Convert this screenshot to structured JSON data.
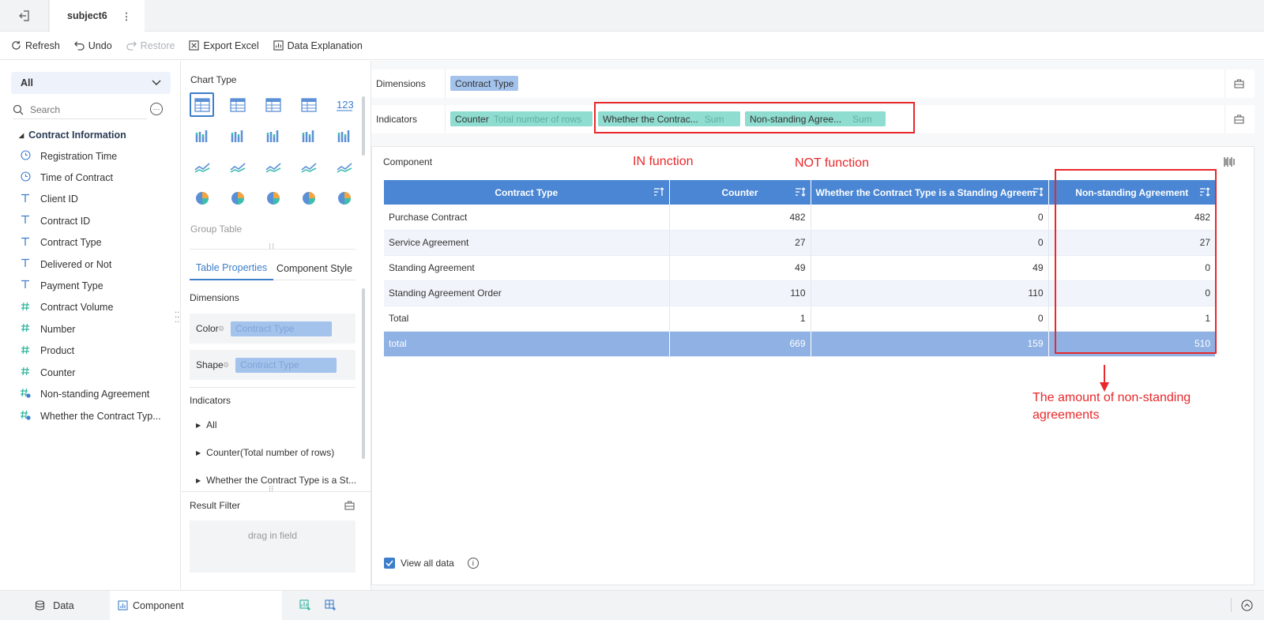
{
  "topbar": {
    "tab_title": "subject6"
  },
  "toolbar": {
    "refresh": "Refresh",
    "undo": "Undo",
    "restore": "Restore",
    "export_excel": "Export Excel",
    "data_explanation": "Data Explanation"
  },
  "left_panel": {
    "filter_selected": "All",
    "search_placeholder": "Search",
    "group_title": "Contract Information",
    "fields": [
      {
        "label": "Registration Time",
        "icon": "clock-icon"
      },
      {
        "label": "Time of Contract",
        "icon": "clock-icon"
      },
      {
        "label": "Client ID",
        "icon": "text-type-icon"
      },
      {
        "label": "Contract ID",
        "icon": "text-type-icon"
      },
      {
        "label": "Contract Type",
        "icon": "text-type-icon"
      },
      {
        "label": "Delivered or Not",
        "icon": "text-type-icon"
      },
      {
        "label": "Payment Type",
        "icon": "text-type-icon"
      },
      {
        "label": "Contract Volume",
        "icon": "number-type-icon"
      },
      {
        "label": "Number",
        "icon": "number-type-icon"
      },
      {
        "label": "Product",
        "icon": "number-type-icon"
      },
      {
        "label": "Counter",
        "icon": "number-type-icon"
      },
      {
        "label": "Non-standing Agreement",
        "icon": "calc-field-icon"
      },
      {
        "label": "Whether the Contract Typ...",
        "icon": "calc-field-icon"
      }
    ]
  },
  "mid_panel": {
    "chart_type_title": "Chart Type",
    "group_table_label": "Group Table",
    "tabs": {
      "table_properties": "Table Properties",
      "component_style": "Component Style"
    },
    "dimensions_title": "Dimensions",
    "color_label": "Color",
    "color_value": "Contract Type",
    "shape_label": "Shape",
    "shape_value": "Contract Type",
    "indicators_title": "Indicators",
    "indicator_items": [
      "All",
      "Counter(Total number of rows)",
      "Whether the Contract Type is a St..."
    ],
    "result_filter_title": "Result Filter",
    "drag_placeholder": "drag in field"
  },
  "right_panel": {
    "dimensions_label": "Dimensions",
    "dimension_chip": "Contract Type",
    "indicators_label": "Indicators",
    "indicator_chips": [
      {
        "name": "Counter",
        "agg": "Total number of rows"
      },
      {
        "name": "Whether the Contrac...",
        "agg": "Sum"
      },
      {
        "name": "Non-standing Agree...",
        "agg": "Sum"
      }
    ],
    "component_title": "Component",
    "annotation_in": "IN function",
    "annotation_not": "NOT function",
    "annotation_amount": "The amount of non-standing agreements",
    "table": {
      "headers": [
        "Contract Type",
        "Counter",
        "Whether the Contract Type is a Standing Agreem",
        "Non-standing Agreement"
      ],
      "rows": [
        [
          "Purchase Contract",
          "482",
          "0",
          "482"
        ],
        [
          "Service Agreement",
          "27",
          "0",
          "27"
        ],
        [
          "Standing Agreement",
          "49",
          "49",
          "0"
        ],
        [
          "Standing Agreement Order",
          "110",
          "110",
          "0"
        ],
        [
          "Total",
          "1",
          "0",
          "1"
        ]
      ],
      "total_row": [
        "total",
        "669",
        "159",
        "510"
      ]
    },
    "view_all_data": "View all data"
  },
  "bottom_bar": {
    "data_tab": "Data",
    "component_tab": "Component"
  },
  "colors": {
    "accent": "#3d7ecb",
    "header_blue": "#4a86d4",
    "total_row": "#8fb1e4",
    "annotation_red": "#e8282b",
    "chip_blue": "#a3c3ec",
    "chip_teal": "#8fdcd0"
  }
}
